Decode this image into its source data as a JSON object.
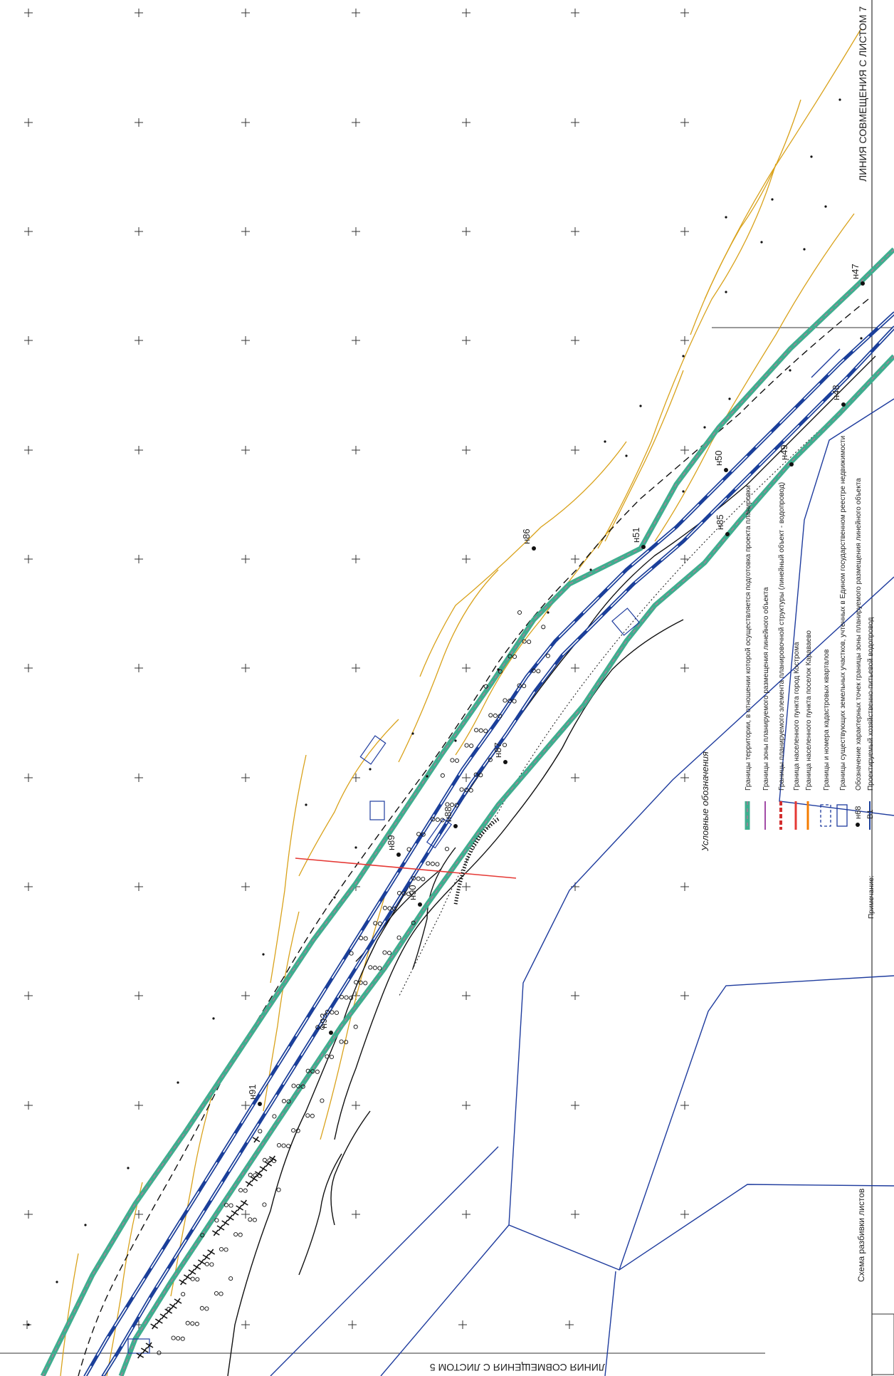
{
  "sheet_link_top": "ЛИНИЯ СОВМЕЩЕНИЯ С ЛИСТОМ 7",
  "sheet_link_bottom": "ЛИНИЯ СОВМЕЩЕНИЯ С ЛИСТОМ 5",
  "legend": {
    "title": "Условные обозначения",
    "items": [
      {
        "symbol": "boundary-teal",
        "text": "Границы территории, в отношении которой осуществляется подготовка проекта планировки"
      },
      {
        "symbol": "zone-purple",
        "text": "Границы зоны планируемого размещения линейного объекта"
      },
      {
        "symbol": "element-red",
        "text": "Границы планируемого элемента планировочной структуры (линейный объект - водопровод)"
      },
      {
        "symbol": "settlement-orange",
        "text": "Граница населенного пункта город Кострома"
      },
      {
        "symbol": "settlement-orange2",
        "text": "Граница населенного пункта поселок Караваево"
      },
      {
        "symbol": "quarter-dashed",
        "text": "Границы и номера кадастровых кварталов"
      },
      {
        "symbol": "parcel-blue",
        "text": "Границы существующих земельных участков, учтенных в Едином государственном реестре недвижимости"
      },
      {
        "symbol": "point-dot",
        "label": "н68",
        "text": "Обозначение характерных точек границы зоны планируемого размещения линейного объекта"
      },
      {
        "symbol": "pipe-blue",
        "label": "В1",
        "text": "Проектируемый хозяйственно-питьевой водопровод"
      }
    ],
    "note_label": "Примечание:"
  },
  "scheme_label": "Схема разбивки листов",
  "points": [
    "н47",
    "н48",
    "н49",
    "н50",
    "н51",
    "н85",
    "н86",
    "н87",
    "н88",
    "н89",
    "н90",
    "н91",
    "н93"
  ],
  "colors": {
    "teal": "#3fae8f",
    "pipe": "#1b3f9a",
    "contour": "#d9a21b",
    "boundary": "#1f3c9e",
    "red": "#e53935"
  }
}
